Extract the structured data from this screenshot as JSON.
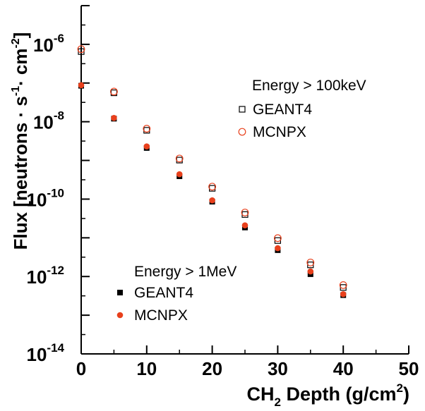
{
  "chart_data": {
    "type": "scatter",
    "xlabel": {
      "main": "CH",
      "sub": "2",
      "rest": " Depth (g/cm",
      "sup": "2",
      "end": ")"
    },
    "ylabel": {
      "main": "Flux [neutrons · s",
      "sup1": "-1",
      "mid": "· cm",
      "sup2": "-2",
      "end": "]"
    },
    "xlim": [
      0,
      50
    ],
    "ylim_exp": [
      -14,
      -5
    ],
    "y_scale": "log",
    "x_ticks": [
      "0",
      "10",
      "20",
      "30",
      "40",
      "50"
    ],
    "y_ticks": [
      {
        "base": "10",
        "exp": "-6"
      },
      {
        "base": "10",
        "exp": "-8"
      },
      {
        "base": "10",
        "exp": "-10"
      },
      {
        "base": "10",
        "exp": "-12"
      },
      {
        "base": "10",
        "exp": "-14"
      }
    ],
    "legends": [
      {
        "title": "Energy > 100keV",
        "placement": "top-right",
        "entries": [
          {
            "label": "GEANT4",
            "marker": "open-square"
          },
          {
            "label": "MCNPX",
            "marker": "open-circle"
          }
        ]
      },
      {
        "title": "Energy > 1MeV",
        "placement": "bottom-left",
        "entries": [
          {
            "label": "GEANT4",
            "marker": "filled-square"
          },
          {
            "label": "MCNPX",
            "marker": "filled-circle"
          }
        ]
      }
    ],
    "series": [
      {
        "group": "Energy > 100keV",
        "name": "GEANT4",
        "marker": "open-square",
        "color": "#000000",
        "x": [
          0,
          5,
          10,
          15,
          20,
          25,
          30,
          35,
          40
        ],
        "y": [
          6.5e-07,
          5.6e-08,
          6e-09,
          1.02e-09,
          1.9e-10,
          4e-11,
          8.5e-12,
          2e-12,
          5.2e-13
        ]
      },
      {
        "group": "Energy > 100keV",
        "name": "MCNPX",
        "marker": "open-circle",
        "color": "#e8401c",
        "x": [
          0,
          5,
          10,
          15,
          20,
          25,
          30,
          35,
          40
        ],
        "y": [
          7.5e-07,
          6e-08,
          6.6e-09,
          1.12e-09,
          2.1e-10,
          4.5e-11,
          9.8e-12,
          2.3e-12,
          6e-13
        ]
      },
      {
        "group": "Energy > 1MeV",
        "name": "GEANT4",
        "marker": "filled-square",
        "color": "#000000",
        "x": [
          0,
          5,
          10,
          15,
          20,
          25,
          30,
          35,
          40
        ],
        "y": [
          8.5e-08,
          1.2e-08,
          2.1e-09,
          3.9e-10,
          8.6e-11,
          1.85e-11,
          4.8e-12,
          1.15e-12,
          3.3e-13
        ]
      },
      {
        "group": "Energy > 1MeV",
        "name": "MCNPX",
        "marker": "filled-circle",
        "color": "#e8401c",
        "x": [
          0,
          5,
          10,
          15,
          20,
          25,
          30,
          35,
          40
        ],
        "y": [
          8.8e-08,
          1.25e-08,
          2.3e-09,
          4.4e-10,
          9.3e-11,
          2.1e-11,
          5.4e-12,
          1.35e-12,
          3.5e-13
        ]
      }
    ]
  }
}
